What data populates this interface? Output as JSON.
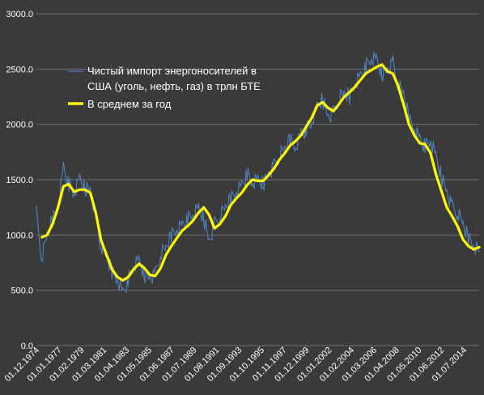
{
  "chart_data": {
    "type": "line",
    "title": "",
    "xlabel": "",
    "ylabel": "",
    "ylim": [
      0,
      3000
    ],
    "y_ticks": [
      "0.0",
      "500.0",
      "1000.0",
      "1500.0",
      "2000.0",
      "2500.0",
      "3000.0"
    ],
    "x_range": [
      "1974-12",
      "2015-12"
    ],
    "x_ticks": [
      "01.12.1974",
      "01.01.1977",
      "01.02.1979",
      "01.03.1981",
      "01.04.1983",
      "01.05.1985",
      "01.06.1987",
      "01.07.1989",
      "01.08.1991",
      "01.09.1993",
      "01.10.1995",
      "01.11.1997",
      "01.12.1999",
      "01.01.2002",
      "01.02.2004",
      "01.03.2006",
      "01.04.2008",
      "01.05.2010",
      "01.06.2012",
      "01.07.2014"
    ],
    "grid": true,
    "legend_position": "top-left",
    "background": "#3a3a3a",
    "series": [
      {
        "name": "Чистый импорт энергоносителей в США  (уголь, нефть, газ) в трлн БТЕ",
        "name_lines": [
          "Чистый импорт энергоносителей в",
          "США  (уголь, нефть, газ) в трлн БТЕ"
        ],
        "color": "#4f81bd",
        "style": "monthly",
        "x": [
          "1974-12",
          "1975-06",
          "1975-12",
          "1976-06",
          "1976-12",
          "1977-06",
          "1977-12",
          "1978-06",
          "1978-12",
          "1979-06",
          "1979-12",
          "1980-06",
          "1980-12",
          "1981-06",
          "1981-12",
          "1982-06",
          "1982-12",
          "1983-06",
          "1983-12",
          "1984-06",
          "1984-12",
          "1985-06",
          "1985-12",
          "1986-06",
          "1986-12",
          "1987-06",
          "1987-12",
          "1988-06",
          "1988-12",
          "1989-06",
          "1989-12",
          "1990-06",
          "1990-12",
          "1991-06",
          "1991-12",
          "1992-06",
          "1992-12",
          "1993-06",
          "1993-12",
          "1994-06",
          "1994-12",
          "1995-06",
          "1995-12",
          "1996-06",
          "1996-12",
          "1997-06",
          "1997-12",
          "1998-06",
          "1998-12",
          "1999-06",
          "1999-12",
          "2000-06",
          "2000-12",
          "2001-06",
          "2001-12",
          "2002-06",
          "2002-12",
          "2003-06",
          "2003-12",
          "2004-06",
          "2004-12",
          "2005-06",
          "2005-12",
          "2006-06",
          "2006-12",
          "2007-06",
          "2007-12",
          "2008-06",
          "2008-12",
          "2009-06",
          "2009-12",
          "2010-06",
          "2010-12",
          "2011-06",
          "2011-12",
          "2012-06",
          "2012-12",
          "2013-06",
          "2013-12",
          "2014-06",
          "2014-12",
          "2015-06",
          "2015-12"
        ],
        "y": [
          1190,
          790,
          1000,
          1150,
          1250,
          1620,
          1450,
          1370,
          1500,
          1420,
          1420,
          1150,
          900,
          800,
          670,
          610,
          480,
          590,
          720,
          760,
          640,
          620,
          640,
          830,
          880,
          1000,
          1060,
          1090,
          1140,
          1180,
          1230,
          1150,
          950,
          1100,
          1170,
          1250,
          1330,
          1400,
          1450,
          1550,
          1470,
          1490,
          1460,
          1560,
          1620,
          1720,
          1780,
          1870,
          1800,
          1920,
          1950,
          2020,
          2150,
          2230,
          2080,
          2100,
          2230,
          2280,
          2250,
          2380,
          2440,
          2520,
          2590,
          2580,
          2450,
          2500,
          2550,
          2350,
          2280,
          2050,
          1970,
          1870,
          1800,
          1850,
          1700,
          1530,
          1400,
          1250,
          1200,
          1100,
          970,
          920,
          850
        ]
      },
      {
        "name": "В среднем за год",
        "color": "#ffff00",
        "style": "smooth",
        "x": [
          "1975-06",
          "1975-12",
          "1976-06",
          "1976-12",
          "1977-06",
          "1977-12",
          "1978-06",
          "1978-12",
          "1979-06",
          "1979-12",
          "1980-06",
          "1980-12",
          "1981-06",
          "1981-12",
          "1982-06",
          "1982-12",
          "1983-06",
          "1983-12",
          "1984-06",
          "1984-12",
          "1985-06",
          "1985-12",
          "1986-06",
          "1986-12",
          "1987-06",
          "1987-12",
          "1988-06",
          "1988-12",
          "1989-06",
          "1989-12",
          "1990-06",
          "1990-12",
          "1991-06",
          "1991-12",
          "1992-06",
          "1992-12",
          "1993-06",
          "1993-12",
          "1994-06",
          "1994-12",
          "1995-06",
          "1995-12",
          "1996-06",
          "1996-12",
          "1997-06",
          "1997-12",
          "1998-06",
          "1998-12",
          "1999-06",
          "1999-12",
          "2000-06",
          "2000-12",
          "2001-06",
          "2001-12",
          "2002-06",
          "2002-12",
          "2003-06",
          "2003-12",
          "2004-06",
          "2004-12",
          "2005-06",
          "2005-12",
          "2006-06",
          "2006-12",
          "2007-06",
          "2007-12",
          "2008-06",
          "2008-12",
          "2009-06",
          "2009-12",
          "2010-06",
          "2010-12",
          "2011-06",
          "2011-12",
          "2012-06",
          "2012-12",
          "2013-06",
          "2013-12",
          "2014-06",
          "2014-12",
          "2015-06",
          "2015-12"
        ],
        "y": [
          980,
          1000,
          1100,
          1250,
          1440,
          1460,
          1390,
          1410,
          1410,
          1380,
          1200,
          950,
          820,
          690,
          620,
          590,
          620,
          690,
          740,
          700,
          640,
          630,
          700,
          820,
          900,
          970,
          1040,
          1080,
          1130,
          1200,
          1250,
          1180,
          1060,
          1100,
          1170,
          1270,
          1330,
          1380,
          1450,
          1500,
          1490,
          1490,
          1540,
          1600,
          1680,
          1740,
          1810,
          1850,
          1900,
          1980,
          2060,
          2170,
          2200,
          2150,
          2120,
          2180,
          2250,
          2290,
          2340,
          2400,
          2460,
          2490,
          2520,
          2540,
          2480,
          2460,
          2350,
          2180,
          2000,
          1900,
          1830,
          1820,
          1740,
          1550,
          1400,
          1250,
          1170,
          1080,
          960,
          900,
          870,
          890
        ]
      }
    ]
  }
}
